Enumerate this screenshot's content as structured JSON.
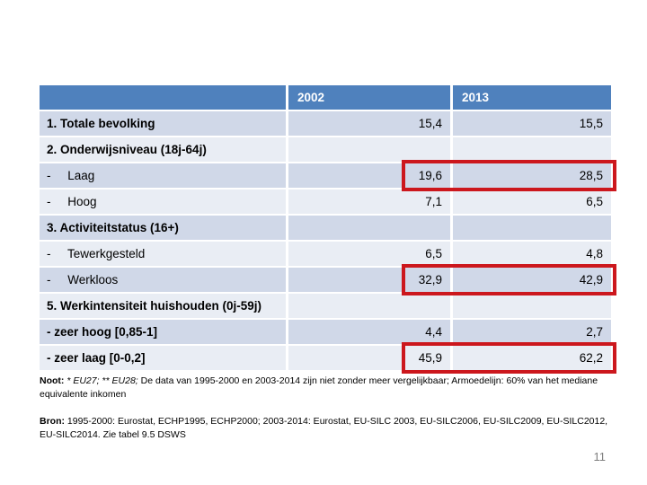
{
  "table": {
    "header": {
      "label": "",
      "col_2002": "2002",
      "col_2013": "2013"
    },
    "rows": [
      {
        "label": "1. Totale bevolking",
        "v2002": "15,4",
        "v2013": "15,5",
        "highlighted": false
      },
      {
        "label": "2. Onderwijsniveau (18j-64j)",
        "v2002": "",
        "v2013": "",
        "highlighted": false
      },
      {
        "label": "-     Laag",
        "v2002": "19,6",
        "v2013": "28,5",
        "highlighted": true
      },
      {
        "label": "-     Hoog",
        "v2002": "7,1",
        "v2013": "6,5",
        "highlighted": false
      },
      {
        "label": "3. Activiteitstatus (16+)",
        "v2002": "",
        "v2013": "",
        "highlighted": false
      },
      {
        "label": "-     Tewerkgesteld",
        "v2002": "6,5",
        "v2013": "4,8",
        "highlighted": false
      },
      {
        "label": "-     Werkloos",
        "v2002": "32,9",
        "v2013": "42,9",
        "highlighted": true
      },
      {
        "label": "5. Werkintensiteit huishouden (0j-59j)",
        "v2002": "",
        "v2013": "",
        "highlighted": false
      },
      {
        "label": "- zeer hoog [0,85-1]",
        "v2002": "4,4",
        "v2013": "2,7",
        "highlighted": false
      },
      {
        "label": "- zeer laag [0-0,2]",
        "v2002": "45,9",
        "v2013": "62,2",
        "highlighted": true
      }
    ]
  },
  "footnotes": {
    "noot_label": "Noot:",
    "noot_italic": "* EU27; ** EU28;",
    "noot_text": "De data van 1995-2000 en 2003-2014 zijn niet zonder meer vergelijkbaar; Armoedelijn: 60% van het mediane equivalente inkomen",
    "bron_label": "Bron:",
    "bron_text": "1995-2000: Eurostat, ECHP1995, ECHP2000; 2003-2014: Eurostat, EU-SILC 2003, EU-SILC2006, EU-SILC2009, EU-SILC2012, EU-SILC2014. Zie tabel 9.5 DSWS"
  },
  "page_number": "11",
  "colors": {
    "header_bg": "#4F81BD",
    "band_dark": "#D0D8E8",
    "band_light": "#E9EDF4",
    "highlight_red": "#CC171D",
    "page_number_gray": "#7F7F7F"
  }
}
